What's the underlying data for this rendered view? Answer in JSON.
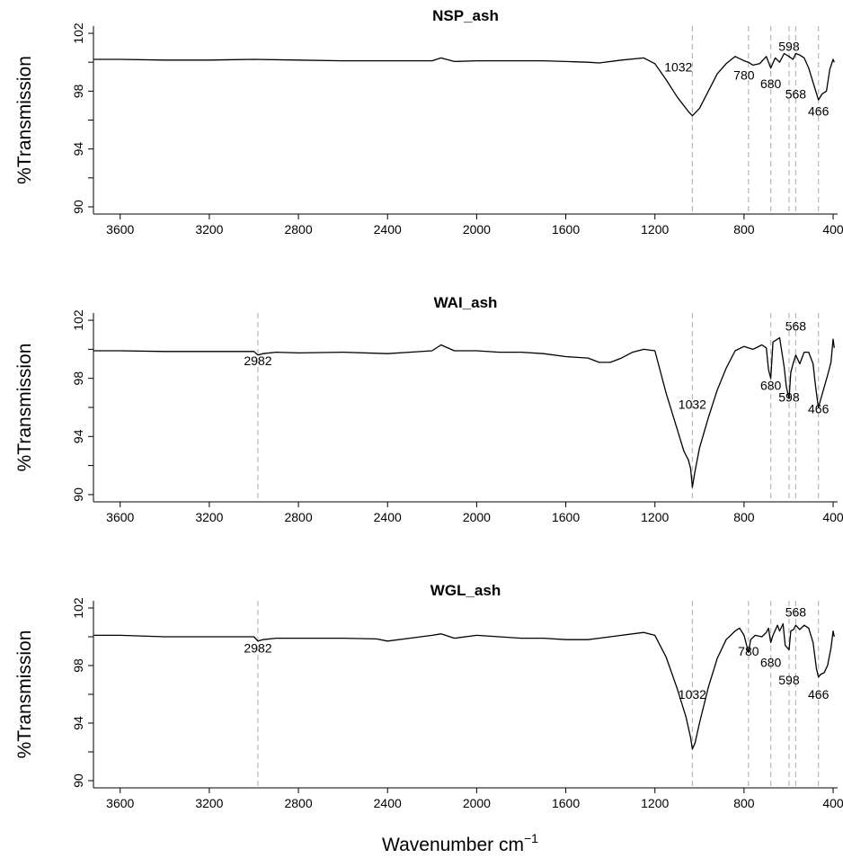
{
  "chart_data": [
    {
      "type": "line",
      "title": "NSP_ash",
      "ylabel": "%Transmission",
      "xlabel": "",
      "xlim": [
        3720,
        380
      ],
      "ylim": [
        89.5,
        102.5
      ],
      "x_ticks": [
        3600,
        3200,
        2800,
        2400,
        2000,
        1600,
        1200,
        800,
        400
      ],
      "y_ticks": [
        90,
        94,
        98,
        102
      ],
      "peaks": [
        {
          "label": "1032",
          "x": 1032,
          "y": 99.1
        },
        {
          "label": "780",
          "x": 780,
          "y": 98.8
        },
        {
          "label": "680",
          "x": 680,
          "y": 98.2
        },
        {
          "label": "598",
          "x": 598,
          "y": 100.8
        },
        {
          "label": "568",
          "x": 568,
          "y": 97.5
        },
        {
          "label": "466",
          "x": 466,
          "y": 96.3
        }
      ],
      "series": [
        {
          "x": [
            3720,
            3600,
            3400,
            3200,
            3000,
            2800,
            2600,
            2400,
            2300,
            2200,
            2160,
            2100,
            2000,
            1900,
            1800,
            1700,
            1600,
            1500,
            1450,
            1350,
            1250,
            1200,
            1150,
            1100,
            1050,
            1032,
            1000,
            960,
            920,
            880,
            840,
            800,
            780,
            760,
            730,
            700,
            680,
            660,
            640,
            620,
            598,
            580,
            568,
            550,
            530,
            510,
            490,
            470,
            466,
            450,
            430,
            415,
            400,
            395
          ],
          "y": [
            100.2,
            100.2,
            100.15,
            100.15,
            100.2,
            100.15,
            100.1,
            100.1,
            100.1,
            100.1,
            100.3,
            100.05,
            100.1,
            100.1,
            100.1,
            100.1,
            100.05,
            100.0,
            99.95,
            100.15,
            100.3,
            99.9,
            98.8,
            97.6,
            96.6,
            96.3,
            96.8,
            98.0,
            99.2,
            99.9,
            100.4,
            100.1,
            100.0,
            99.8,
            99.9,
            100.4,
            99.6,
            100.3,
            100.0,
            100.6,
            100.4,
            100.2,
            100.6,
            100.5,
            100.3,
            99.6,
            98.6,
            97.6,
            97.4,
            97.8,
            98.0,
            99.5,
            100.2,
            100.0
          ]
        }
      ]
    },
    {
      "type": "line",
      "title": "WAI_ash",
      "ylabel": "%Transmission",
      "xlabel": "",
      "xlim": [
        3720,
        380
      ],
      "ylim": [
        89.5,
        102.5
      ],
      "x_ticks": [
        3600,
        3200,
        2800,
        2400,
        2000,
        1600,
        1200,
        800,
        400
      ],
      "y_ticks": [
        90,
        94,
        98,
        102
      ],
      "peaks": [
        {
          "label": "2982",
          "x": 2982,
          "y": 98.9
        },
        {
          "label": "1032",
          "x": 1032,
          "y": 95.9
        },
        {
          "label": "680",
          "x": 680,
          "y": 97.2
        },
        {
          "label": "568",
          "x": 568,
          "y": 101.3
        },
        {
          "label": "598",
          "x": 598,
          "y": 96.4
        },
        {
          "label": "466",
          "x": 466,
          "y": 95.6
        }
      ],
      "series": [
        {
          "x": [
            3720,
            3600,
            3400,
            3200,
            3000,
            2982,
            2960,
            2900,
            2800,
            2600,
            2400,
            2300,
            2200,
            2160,
            2100,
            2000,
            1900,
            1800,
            1700,
            1600,
            1500,
            1450,
            1400,
            1350,
            1300,
            1250,
            1200,
            1150,
            1100,
            1070,
            1050,
            1040,
            1032,
            1020,
            1000,
            960,
            920,
            880,
            840,
            800,
            760,
            720,
            700,
            690,
            680,
            670,
            660,
            640,
            620,
            610,
            598,
            590,
            580,
            568,
            550,
            530,
            510,
            490,
            480,
            470,
            466,
            455,
            440,
            425,
            410,
            400,
            395
          ],
          "y": [
            99.9,
            99.9,
            99.85,
            99.85,
            99.85,
            99.6,
            99.7,
            99.8,
            99.75,
            99.8,
            99.7,
            99.8,
            99.9,
            100.3,
            99.9,
            99.9,
            99.8,
            99.8,
            99.7,
            99.5,
            99.4,
            99.1,
            99.1,
            99.4,
            99.8,
            100.0,
            99.9,
            97.0,
            94.5,
            93.0,
            92.4,
            91.8,
            90.5,
            91.6,
            93.2,
            95.3,
            97.2,
            98.7,
            99.9,
            100.2,
            100.0,
            100.3,
            100.1,
            98.6,
            98.0,
            100.5,
            100.6,
            100.8,
            98.8,
            97.4,
            96.6,
            98.4,
            99.0,
            99.6,
            99.0,
            99.8,
            99.8,
            99.0,
            97.6,
            96.4,
            96.0,
            96.6,
            97.4,
            98.2,
            99.1,
            100.7,
            100.1
          ]
        }
      ]
    },
    {
      "type": "line",
      "title": "WGL_ash",
      "ylabel": "%Transmission",
      "xlabel": "Wavenumber cm",
      "xlabel_superscript": "−1",
      "xlim": [
        3720,
        380
      ],
      "ylim": [
        89.5,
        102.5
      ],
      "x_ticks": [
        3600,
        3200,
        2800,
        2400,
        2000,
        1600,
        1200,
        800,
        400
      ],
      "y_ticks": [
        90,
        94,
        98,
        102
      ],
      "peaks": [
        {
          "label": "2982",
          "x": 2982,
          "y": 98.9
        },
        {
          "label": "1032",
          "x": 1032,
          "y": 95.7
        },
        {
          "label": "780",
          "x": 780,
          "y": 98.7
        },
        {
          "label": "680",
          "x": 680,
          "y": 97.9
        },
        {
          "label": "568",
          "x": 568,
          "y": 101.4
        },
        {
          "label": "598",
          "x": 598,
          "y": 96.7
        },
        {
          "label": "466",
          "x": 466,
          "y": 95.7
        }
      ],
      "series": [
        {
          "x": [
            3720,
            3600,
            3400,
            3200,
            3000,
            2982,
            2960,
            2900,
            2800,
            2600,
            2450,
            2400,
            2300,
            2200,
            2160,
            2100,
            2000,
            1900,
            1800,
            1700,
            1600,
            1500,
            1450,
            1350,
            1250,
            1200,
            1150,
            1100,
            1060,
            1040,
            1032,
            1020,
            1000,
            960,
            920,
            880,
            840,
            820,
            800,
            790,
            780,
            770,
            750,
            720,
            700,
            690,
            680,
            670,
            650,
            640,
            625,
            615,
            598,
            590,
            578,
            568,
            550,
            530,
            510,
            490,
            475,
            466,
            455,
            440,
            425,
            410,
            400,
            395
          ],
          "y": [
            100.1,
            100.1,
            100.0,
            100.0,
            100.0,
            99.7,
            99.8,
            99.9,
            99.9,
            99.9,
            99.85,
            99.7,
            99.9,
            100.1,
            100.2,
            99.9,
            100.1,
            100.0,
            99.9,
            99.9,
            99.8,
            99.8,
            99.9,
            100.1,
            100.3,
            100.1,
            98.6,
            96.4,
            94.4,
            93.0,
            92.2,
            92.6,
            94.0,
            96.5,
            98.5,
            99.8,
            100.4,
            100.6,
            100.1,
            99.5,
            98.9,
            99.8,
            100.1,
            100.0,
            100.3,
            100.6,
            99.6,
            100.1,
            100.8,
            100.4,
            100.9,
            99.4,
            99.1,
            100.4,
            100.5,
            100.8,
            100.5,
            100.8,
            100.6,
            99.6,
            97.8,
            97.2,
            97.4,
            97.5,
            98.0,
            99.2,
            100.4,
            100.0
          ]
        }
      ]
    }
  ]
}
